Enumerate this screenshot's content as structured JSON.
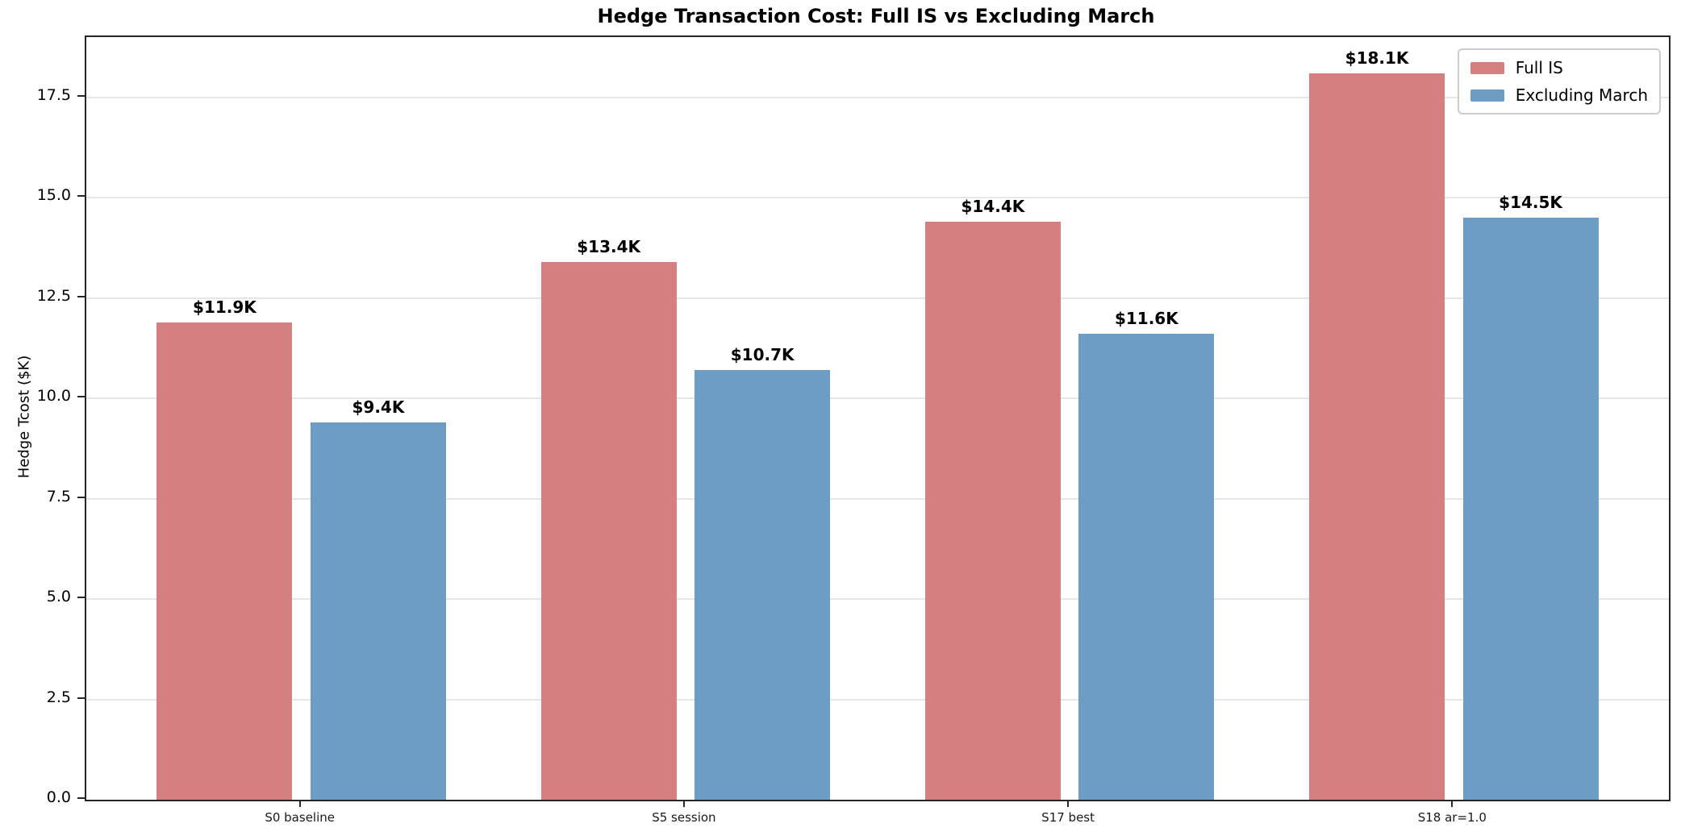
{
  "chart_data": {
    "type": "bar",
    "title": "Hedge Transaction Cost: Full IS vs Excluding March",
    "xlabel": "",
    "ylabel": "Hedge Tcost ($K)",
    "categories": [
      "S0 baseline",
      "S5 session",
      "S17 best",
      "S18 ar=1.0"
    ],
    "series": [
      {
        "name": "Full IS",
        "color": "#d67f80",
        "values": [
          11.9,
          13.4,
          14.4,
          18.1
        ],
        "bar_labels": [
          "$11.9K",
          "$13.4K",
          "$14.4K",
          "$18.1K"
        ]
      },
      {
        "name": "Excluding March",
        "color": "#6d9dc5",
        "values": [
          9.4,
          10.7,
          11.6,
          14.5
        ],
        "bar_labels": [
          "$9.4K",
          "$10.7K",
          "$11.6K",
          "$14.5K"
        ]
      }
    ],
    "ylim": [
      0,
      19
    ],
    "yticks": [
      0,
      2.5,
      5,
      7.5,
      10,
      12.5,
      15,
      17.5
    ],
    "ytick_labels": [
      "0.0",
      "2.5",
      "5.0",
      "7.5",
      "10.0",
      "12.5",
      "15.0",
      "17.5"
    ],
    "grid": {
      "horizontal": true,
      "vertical": false,
      "color": "#e6e6e6"
    },
    "legend": {
      "position": "upper right"
    },
    "colors": {
      "spine": "#262626",
      "background": "#ffffff",
      "grid": "#e6e6e6"
    }
  }
}
